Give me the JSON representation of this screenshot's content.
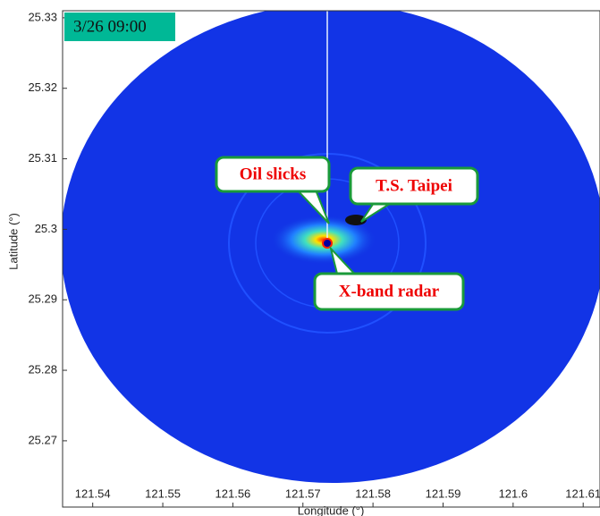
{
  "chart_data": {
    "type": "image",
    "xlabel": "Longitude (°)",
    "ylabel": "Latitude (°)",
    "xlim": [
      121.5357,
      121.6124
    ],
    "ylim": [
      25.2606,
      25.331
    ],
    "xticks": [
      121.54,
      121.55,
      121.56,
      121.57,
      121.58,
      121.59,
      121.6,
      121.61
    ],
    "yticks": [
      25.27,
      25.28,
      25.29,
      25.3,
      25.31,
      25.32,
      25.33
    ],
    "annotations": [
      "3/26 09:00",
      "Oil slicks",
      "T.S. Taipei",
      "X-band radar"
    ]
  }
}
